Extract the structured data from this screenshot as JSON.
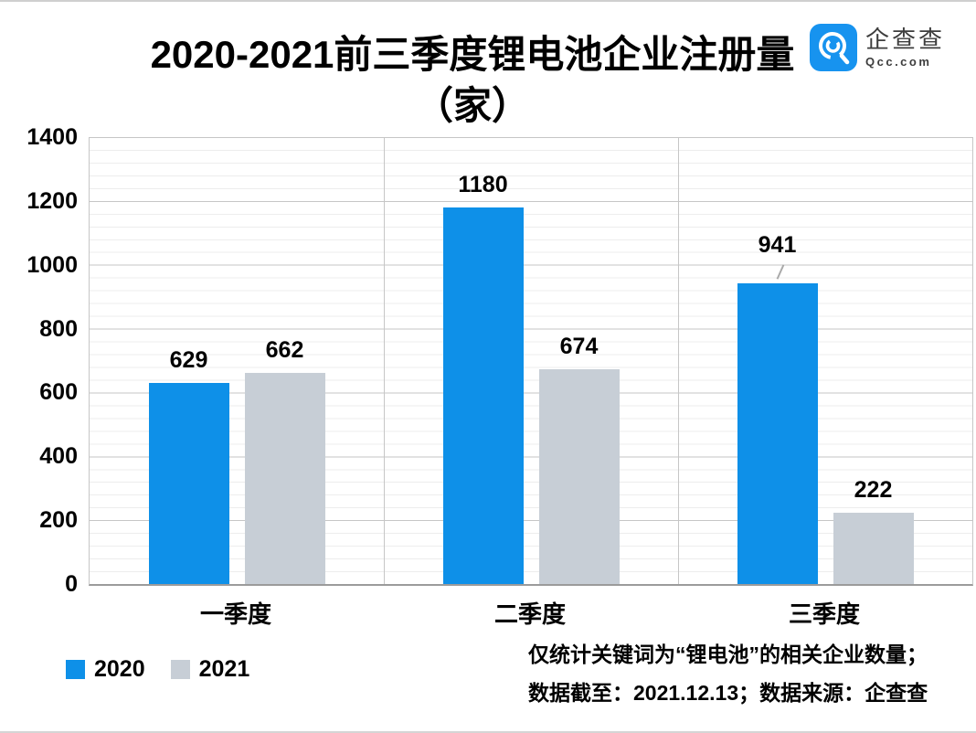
{
  "title": {
    "line1": "2020-2021前三季度锂电池企业注册量",
    "line2": "（家）"
  },
  "logo": {
    "name": "企查查",
    "domain": "Qcc.com",
    "color": "#1793EF"
  },
  "chart_data": {
    "type": "bar",
    "title": "2020-2021前三季度锂电池企业注册量（家）",
    "categories": [
      "一季度",
      "二季度",
      "三季度"
    ],
    "series": [
      {
        "name": "2020",
        "color": "#0E90E8",
        "values": [
          629,
          1180,
          941
        ]
      },
      {
        "name": "2021",
        "color": "#C7CED6",
        "values": [
          662,
          674,
          222
        ]
      }
    ],
    "ylim": [
      0,
      1400
    ],
    "yticks": [
      1400,
      1200,
      1000,
      800,
      600,
      400,
      200,
      0
    ],
    "major_grid_step": 200,
    "minor_grid_step": 40,
    "grid": true,
    "legend_position": "bottom-left",
    "callouts": [
      {
        "series_index": 0,
        "category_index": 2
      }
    ],
    "colors": {
      "major_grid": "#c6c6c6",
      "minor_grid": "#ededed",
      "axis_line": "#9b9b9b",
      "leader_line": "#a9a9a9"
    }
  },
  "notes": {
    "line1": "仅统计关键词为“锂电池”的相关企业数量；",
    "line2": "数据截至：2021.12.13；数据来源：企查查"
  }
}
